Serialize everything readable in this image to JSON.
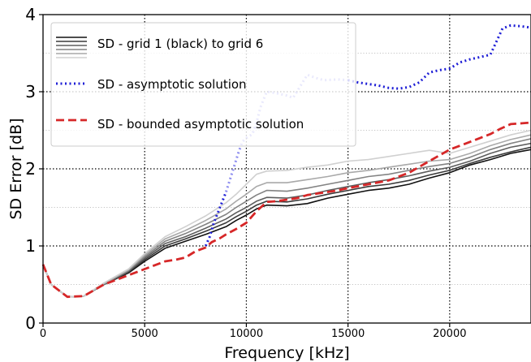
{
  "chart_data": {
    "type": "line",
    "xlabel": "Frequency [kHz]",
    "ylabel": "SD Error [dB]",
    "xlim": [
      0,
      24000
    ],
    "ylim": [
      0,
      4
    ],
    "x_ticks": [
      0,
      5000,
      10000,
      15000,
      20000
    ],
    "x_tick_labels": [
      "0",
      "5000",
      "10000",
      "15000",
      "20000"
    ],
    "y_ticks": [
      0,
      1,
      2,
      3,
      4
    ],
    "y_tick_labels": [
      "0",
      "1",
      "2",
      "3",
      "4"
    ],
    "grid": "dotted, major and minor",
    "legend_position": "top-left",
    "legend": [
      {
        "label": "SD - grid 1 (black) to grid 6",
        "style": "solid gray ramp"
      },
      {
        "label": "SD - asymptotic solution",
        "style": "dotted",
        "color": "#1f1fd6"
      },
      {
        "label": "SD - bounded asymptotic solution",
        "style": "dashed",
        "color": "#d62728"
      }
    ],
    "series": [
      {
        "color": "#111111",
        "style": "solid",
        "x": [
          0,
          400,
          1200,
          2000,
          3000,
          4200,
          5000,
          6000,
          7000,
          8000,
          9000,
          9500,
          10000,
          10500,
          11000,
          12000,
          13000,
          14000,
          15000,
          16000,
          17000,
          18000,
          19000,
          20000,
          21000,
          22000,
          23000,
          24000
        ],
        "y": [
          0.76,
          0.5,
          0.34,
          0.35,
          0.5,
          0.65,
          0.8,
          0.97,
          1.06,
          1.15,
          1.25,
          1.33,
          1.4,
          1.48,
          1.53,
          1.52,
          1.55,
          1.62,
          1.67,
          1.72,
          1.75,
          1.8,
          1.88,
          1.95,
          2.05,
          2.12,
          2.2,
          2.25
        ]
      },
      {
        "color": "#3a3a3a",
        "style": "solid",
        "x": [
          0,
          400,
          1200,
          2000,
          3000,
          4200,
          5000,
          6000,
          7000,
          8000,
          9000,
          9500,
          10000,
          10500,
          11000,
          12000,
          13000,
          14000,
          15000,
          16000,
          17000,
          18000,
          19000,
          20000,
          21000,
          22000,
          23000,
          24000
        ],
        "y": [
          0.76,
          0.5,
          0.34,
          0.35,
          0.5,
          0.66,
          0.82,
          1.0,
          1.09,
          1.19,
          1.3,
          1.38,
          1.45,
          1.53,
          1.58,
          1.57,
          1.61,
          1.67,
          1.72,
          1.77,
          1.8,
          1.85,
          1.92,
          1.98,
          2.07,
          2.15,
          2.22,
          2.28
        ]
      },
      {
        "color": "#5e5e5e",
        "style": "solid",
        "x": [
          0,
          400,
          1200,
          2000,
          3000,
          4200,
          5000,
          6000,
          7000,
          8000,
          9000,
          9500,
          10000,
          10500,
          11000,
          12000,
          13000,
          14000,
          15000,
          16000,
          17000,
          18000,
          19000,
          20000,
          21000,
          22000,
          23000,
          24000
        ],
        "y": [
          0.76,
          0.5,
          0.34,
          0.35,
          0.5,
          0.67,
          0.84,
          1.03,
          1.12,
          1.23,
          1.35,
          1.43,
          1.5,
          1.58,
          1.63,
          1.62,
          1.66,
          1.72,
          1.77,
          1.82,
          1.86,
          1.91,
          1.97,
          2.02,
          2.1,
          2.2,
          2.28,
          2.33
        ]
      },
      {
        "color": "#838383",
        "style": "solid",
        "x": [
          0,
          400,
          1200,
          2000,
          3000,
          4200,
          5000,
          6000,
          7000,
          8000,
          9000,
          9500,
          10000,
          10500,
          11000,
          12000,
          13000,
          14000,
          15000,
          16000,
          17000,
          18000,
          19000,
          20000,
          21000,
          22000,
          23000,
          24000
        ],
        "y": [
          0.76,
          0.5,
          0.34,
          0.35,
          0.51,
          0.68,
          0.86,
          1.06,
          1.16,
          1.28,
          1.41,
          1.5,
          1.58,
          1.66,
          1.72,
          1.71,
          1.75,
          1.8,
          1.85,
          1.9,
          1.93,
          1.98,
          2.03,
          2.07,
          2.15,
          2.25,
          2.33,
          2.39
        ]
      },
      {
        "color": "#a9a9a9",
        "style": "solid",
        "x": [
          0,
          400,
          1200,
          2000,
          3000,
          4200,
          5000,
          6000,
          7000,
          8000,
          9000,
          9500,
          10000,
          10500,
          11000,
          12000,
          13000,
          14000,
          15000,
          16000,
          17000,
          18000,
          19000,
          20000,
          21000,
          22000,
          23000,
          24000
        ],
        "y": [
          0.76,
          0.5,
          0.34,
          0.35,
          0.51,
          0.69,
          0.88,
          1.09,
          1.2,
          1.33,
          1.48,
          1.58,
          1.67,
          1.77,
          1.82,
          1.82,
          1.86,
          1.9,
          1.95,
          1.98,
          2.02,
          2.06,
          2.1,
          2.12,
          2.2,
          2.3,
          2.38,
          2.44
        ]
      },
      {
        "color": "#d0d0d0",
        "style": "solid",
        "x": [
          0,
          400,
          1200,
          2000,
          3000,
          4200,
          5000,
          6000,
          7000,
          8000,
          9000,
          9500,
          10000,
          10500,
          11000,
          12000,
          13000,
          14000,
          15000,
          16000,
          17000,
          18000,
          19000,
          20000,
          21000,
          22000,
          23000,
          24000
        ],
        "y": [
          0.76,
          0.5,
          0.34,
          0.35,
          0.52,
          0.7,
          0.9,
          1.12,
          1.25,
          1.39,
          1.56,
          1.67,
          1.8,
          1.93,
          1.97,
          1.98,
          2.02,
          2.05,
          2.1,
          2.12,
          2.16,
          2.2,
          2.24,
          2.2,
          2.28,
          2.36,
          2.44,
          2.5
        ]
      },
      {
        "color": "#1f1fd6",
        "style": "dotted",
        "fade_range": [
          9000,
          15000
        ],
        "x": [
          8000,
          8200,
          8400,
          8700,
          9000,
          9300,
          9600,
          9800,
          10000,
          10300,
          10500,
          10700,
          11000,
          11500,
          12000,
          12300,
          12600,
          13000,
          13400,
          13800,
          14500,
          15000,
          15500,
          16000,
          16500,
          17000,
          17500,
          18000,
          18500,
          19000,
          19500,
          20000,
          20500,
          21000,
          21500,
          22000,
          22300,
          22600,
          23000,
          23500,
          24000
        ],
        "y": [
          1.0,
          1.12,
          1.3,
          1.5,
          1.7,
          1.95,
          2.2,
          2.35,
          2.4,
          2.45,
          2.6,
          2.8,
          3.0,
          2.98,
          2.95,
          2.92,
          3.05,
          3.22,
          3.18,
          3.15,
          3.16,
          3.15,
          3.12,
          3.1,
          3.08,
          3.05,
          3.04,
          3.06,
          3.12,
          3.25,
          3.28,
          3.3,
          3.38,
          3.42,
          3.45,
          3.48,
          3.65,
          3.82,
          3.86,
          3.85,
          3.83
        ]
      },
      {
        "color": "#d62728",
        "style": "dashed",
        "x": [
          0,
          400,
          1200,
          2000,
          3000,
          4200,
          5000,
          6000,
          6500,
          7000,
          7500,
          8000,
          8300,
          8700,
          9000,
          9500,
          10000,
          10500,
          11000,
          11500,
          12000,
          12500,
          13000,
          13500,
          14000,
          14500,
          15000,
          16000,
          17000,
          18000,
          19000,
          20000,
          21000,
          22000,
          22500,
          23000,
          23500,
          24000
        ],
        "y": [
          0.76,
          0.5,
          0.34,
          0.35,
          0.5,
          0.62,
          0.7,
          0.8,
          0.82,
          0.85,
          0.93,
          0.98,
          1.05,
          1.1,
          1.15,
          1.22,
          1.3,
          1.45,
          1.57,
          1.58,
          1.6,
          1.62,
          1.66,
          1.68,
          1.7,
          1.72,
          1.75,
          1.8,
          1.85,
          1.95,
          2.1,
          2.25,
          2.35,
          2.45,
          2.52,
          2.58,
          2.59,
          2.6
        ]
      }
    ]
  }
}
